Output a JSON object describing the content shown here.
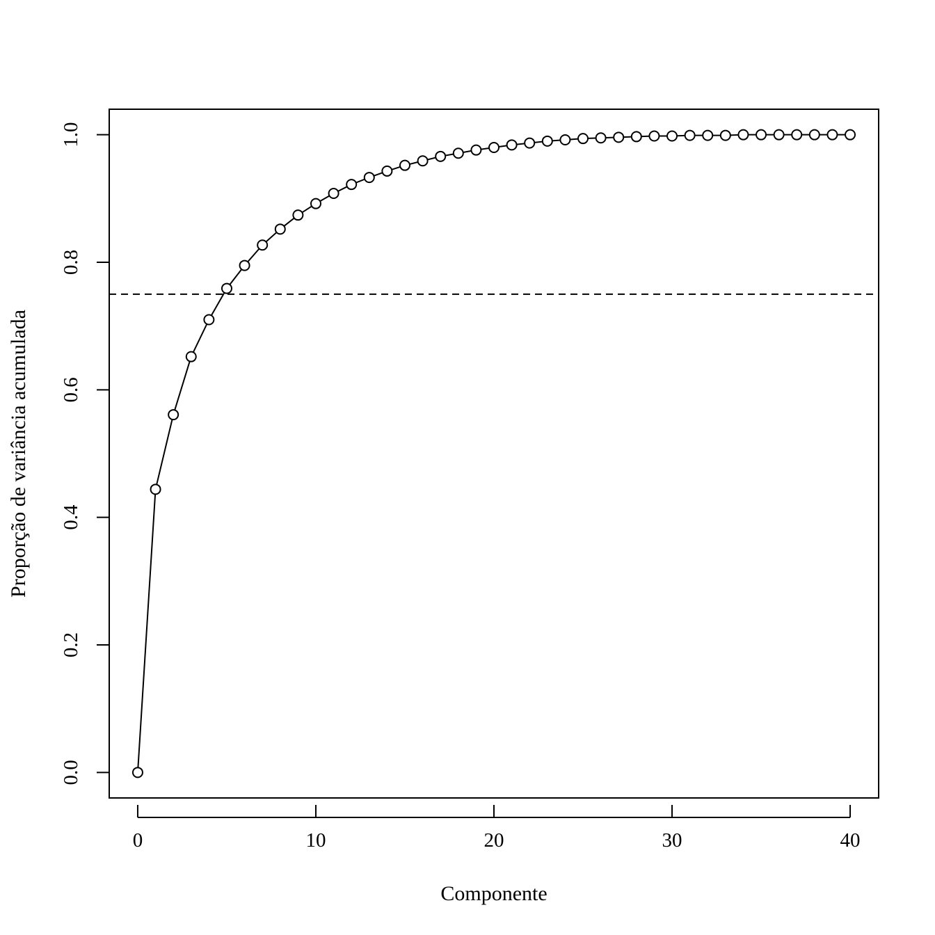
{
  "chart_data": {
    "type": "line",
    "title": "",
    "xlabel": "Componente",
    "ylabel": "Proporção de variância acumulada",
    "xlim": [
      -1.6,
      41.6
    ],
    "ylim": [
      -0.04,
      1.04
    ],
    "x_ticks": [
      0,
      10,
      20,
      30,
      40
    ],
    "x_tick_labels": [
      "0",
      "10",
      "20",
      "30",
      "40"
    ],
    "y_ticks": [
      0.0,
      0.2,
      0.4,
      0.6,
      0.8,
      1.0
    ],
    "y_tick_labels": [
      "0.0",
      "0.2",
      "0.4",
      "0.6",
      "0.8",
      "1.0"
    ],
    "grid": false,
    "series": [
      {
        "marker": "open-circle",
        "line": "solid",
        "color": "#000000",
        "x": [
          0,
          1,
          2,
          3,
          4,
          5,
          6,
          7,
          8,
          9,
          10,
          11,
          12,
          13,
          14,
          15,
          16,
          17,
          18,
          19,
          20,
          21,
          22,
          23,
          24,
          25,
          26,
          27,
          28,
          29,
          30,
          31,
          32,
          33,
          34,
          35,
          36,
          37,
          38,
          39,
          40
        ],
        "y": [
          0.0,
          0.444,
          0.561,
          0.652,
          0.71,
          0.759,
          0.795,
          0.827,
          0.852,
          0.874,
          0.892,
          0.908,
          0.922,
          0.933,
          0.943,
          0.952,
          0.959,
          0.966,
          0.971,
          0.976,
          0.98,
          0.984,
          0.987,
          0.99,
          0.992,
          0.994,
          0.995,
          0.996,
          0.997,
          0.998,
          0.998,
          0.999,
          0.999,
          0.999,
          1.0,
          1.0,
          1.0,
          1.0,
          1.0,
          1.0,
          1.0
        ]
      }
    ],
    "reference_line": {
      "orientation": "horizontal",
      "y": 0.75,
      "style": "dashed",
      "color": "#000000"
    }
  }
}
